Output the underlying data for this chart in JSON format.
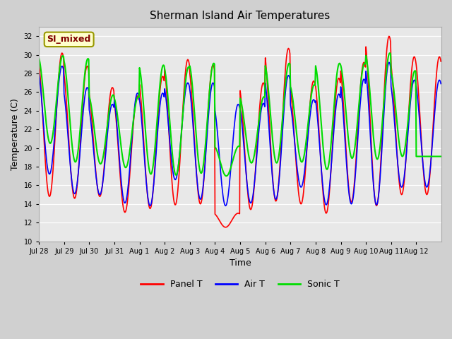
{
  "title": "Sherman Island Air Temperatures",
  "xlabel": "Time",
  "ylabel": "Temperature (C)",
  "ylim": [
    10,
    33
  ],
  "yticks": [
    10,
    12,
    14,
    16,
    18,
    20,
    22,
    24,
    26,
    28,
    30,
    32
  ],
  "annotation_text": "SI_mixed",
  "annotation_bg": "#ffffcc",
  "annotation_fg": "#800000",
  "legend_entries": [
    "Panel T",
    "Air T",
    "Sonic T"
  ],
  "line_colors": [
    "red",
    "blue",
    "#00dd00"
  ],
  "x_tick_labels": [
    "Jul 28",
    "Jul 29",
    "Jul 30",
    "Jul 31",
    "Aug 1",
    "Aug 2",
    "Aug 3",
    "Aug 4",
    "Aug 5",
    "Aug 6",
    "Aug 7",
    "Aug 8",
    "Aug 9",
    "Aug 10",
    "Aug 11",
    "Aug 12"
  ],
  "n_days": 16,
  "panel_t_peaks": [
    30.2,
    28.8,
    26.5,
    25.6,
    27.7,
    29.5,
    28.9,
    13.0,
    27.0,
    30.7,
    27.2,
    27.5,
    29.2,
    32.0,
    29.8,
    29.8
  ],
  "panel_t_troughs": [
    14.8,
    14.6,
    14.8,
    13.1,
    13.5,
    13.9,
    14.0,
    11.5,
    13.4,
    14.3,
    14.0,
    13.0,
    14.2,
    13.8,
    15.0,
    15.0
  ],
  "air_t_peaks": [
    28.8,
    26.5,
    24.7,
    25.9,
    25.9,
    27.0,
    27.0,
    24.7,
    24.8,
    27.8,
    25.2,
    25.8,
    27.4,
    29.2,
    27.3,
    27.3
  ],
  "air_t_troughs": [
    17.2,
    15.1,
    15.0,
    14.1,
    13.8,
    16.6,
    14.5,
    13.8,
    14.1,
    14.5,
    15.8,
    13.9,
    14.0,
    13.9,
    15.8,
    15.8
  ],
  "sonic_t_peaks": [
    29.9,
    29.6,
    25.7,
    25.5,
    28.9,
    28.7,
    29.1,
    20.2,
    25.5,
    29.1,
    26.8,
    29.1,
    29.1,
    30.2,
    28.3,
    19.1
  ],
  "sonic_t_troughs": [
    20.5,
    18.5,
    18.3,
    17.9,
    17.2,
    17.1,
    17.3,
    17.0,
    18.4,
    18.4,
    18.5,
    17.7,
    18.9,
    18.8,
    19.1,
    19.1
  ]
}
